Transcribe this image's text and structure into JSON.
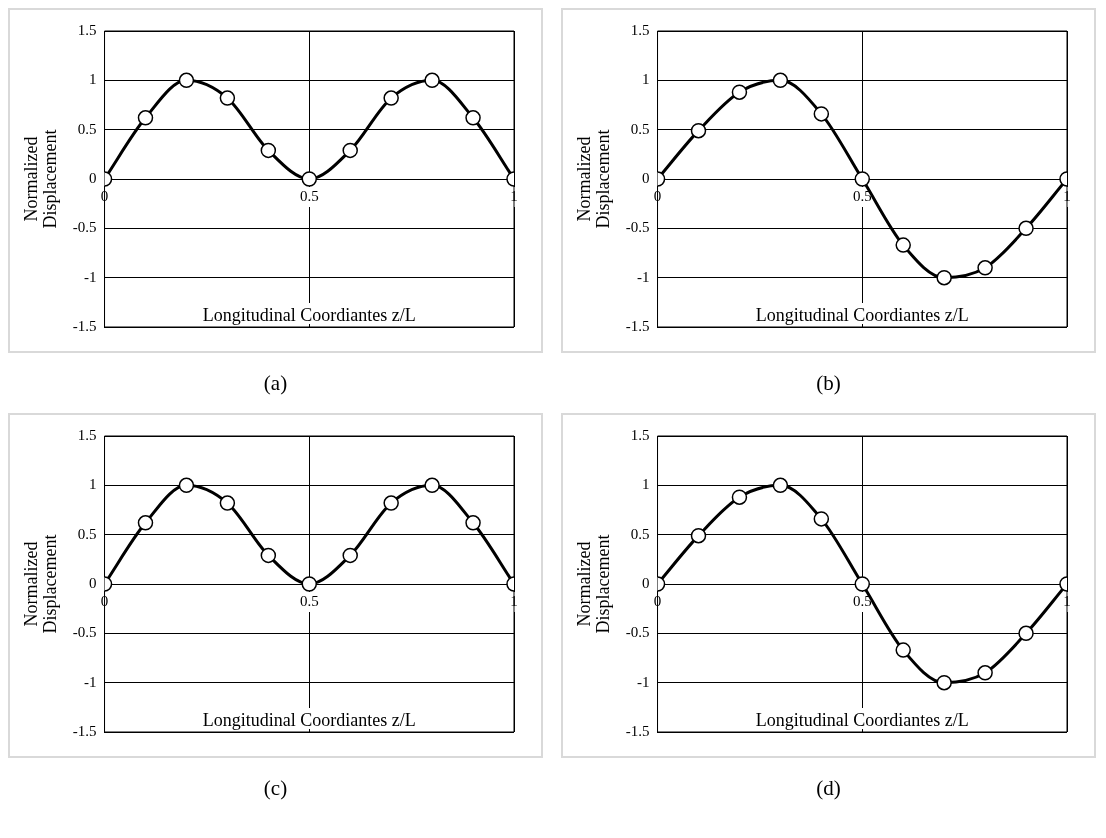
{
  "chart_data": [
    {
      "type": "line",
      "ylabel": "Normalized Displacement",
      "xlabel": "Longitudinal Coordiantes z/L",
      "annotations": [
        "(a)"
      ],
      "x": [
        0,
        0.1,
        0.2,
        0.3,
        0.4,
        0.5,
        0.6,
        0.7,
        0.8,
        0.9,
        1
      ],
      "series": [
        {
          "color": "#000000",
          "values": [
            0,
            0.62,
            1,
            0.82,
            0.29,
            0,
            0.29,
            0.82,
            1,
            0.62,
            0
          ]
        }
      ],
      "xlim": [
        0,
        1
      ],
      "xticks": [
        0,
        0.5,
        1
      ],
      "ylim": [
        -1.5,
        1.5
      ],
      "yticks": [
        -1.5,
        -1,
        -0.5,
        0,
        0.5,
        1,
        1.5
      ],
      "grid": true,
      "legend": false,
      "marker": "circle",
      "line_style": "solid"
    },
    {
      "type": "line",
      "ylabel": "Normalized Displacement",
      "xlabel": "Longitudinal Coordiantes z/L",
      "annotations": [
        "(b)"
      ],
      "x": [
        0,
        0.1,
        0.2,
        0.3,
        0.4,
        0.5,
        0.6,
        0.7,
        0.8,
        0.9,
        1
      ],
      "series": [
        {
          "color": "#000000",
          "values": [
            0,
            0.49,
            0.88,
            1,
            0.66,
            0,
            -0.67,
            -1,
            -0.9,
            -0.5,
            0
          ]
        }
      ],
      "xlim": [
        0,
        1
      ],
      "xticks": [
        0,
        0.5,
        1
      ],
      "ylim": [
        -1.5,
        1.5
      ],
      "yticks": [
        -1.5,
        -1,
        -0.5,
        0,
        0.5,
        1,
        1.5
      ],
      "grid": true,
      "legend": false,
      "marker": "circle",
      "line_style": "solid"
    },
    {
      "type": "line",
      "ylabel": "Normalized Displacement",
      "xlabel": "Longitudinal Coordiantes z/L",
      "annotations": [
        "(c)"
      ],
      "x": [
        0,
        0.1,
        0.2,
        0.3,
        0.4,
        0.5,
        0.6,
        0.7,
        0.8,
        0.9,
        1
      ],
      "series": [
        {
          "color": "#000000",
          "values": [
            0,
            0.62,
            1,
            0.82,
            0.29,
            0,
            0.29,
            0.82,
            1,
            0.62,
            0
          ]
        }
      ],
      "xlim": [
        0,
        1
      ],
      "xticks": [
        0,
        0.5,
        1
      ],
      "ylim": [
        -1.5,
        1.5
      ],
      "yticks": [
        -1.5,
        -1,
        -0.5,
        0,
        0.5,
        1,
        1.5
      ],
      "grid": true,
      "legend": false,
      "marker": "circle",
      "line_style": "solid"
    },
    {
      "type": "line",
      "ylabel": "Normalized Displacement",
      "xlabel": "Longitudinal Coordiantes z/L",
      "annotations": [
        "(d)"
      ],
      "x": [
        0,
        0.1,
        0.2,
        0.3,
        0.4,
        0.5,
        0.6,
        0.7,
        0.8,
        0.9,
        1
      ],
      "series": [
        {
          "color": "#000000",
          "values": [
            0,
            0.49,
            0.88,
            1,
            0.66,
            0,
            -0.67,
            -1,
            -0.9,
            -0.5,
            0
          ]
        }
      ],
      "xlim": [
        0,
        1
      ],
      "xticks": [
        0,
        0.5,
        1
      ],
      "ylim": [
        -1.5,
        1.5
      ],
      "yticks": [
        -1.5,
        -1,
        -0.5,
        0,
        0.5,
        1,
        1.5
      ],
      "grid": true,
      "legend": false,
      "marker": "circle",
      "line_style": "solid"
    }
  ]
}
